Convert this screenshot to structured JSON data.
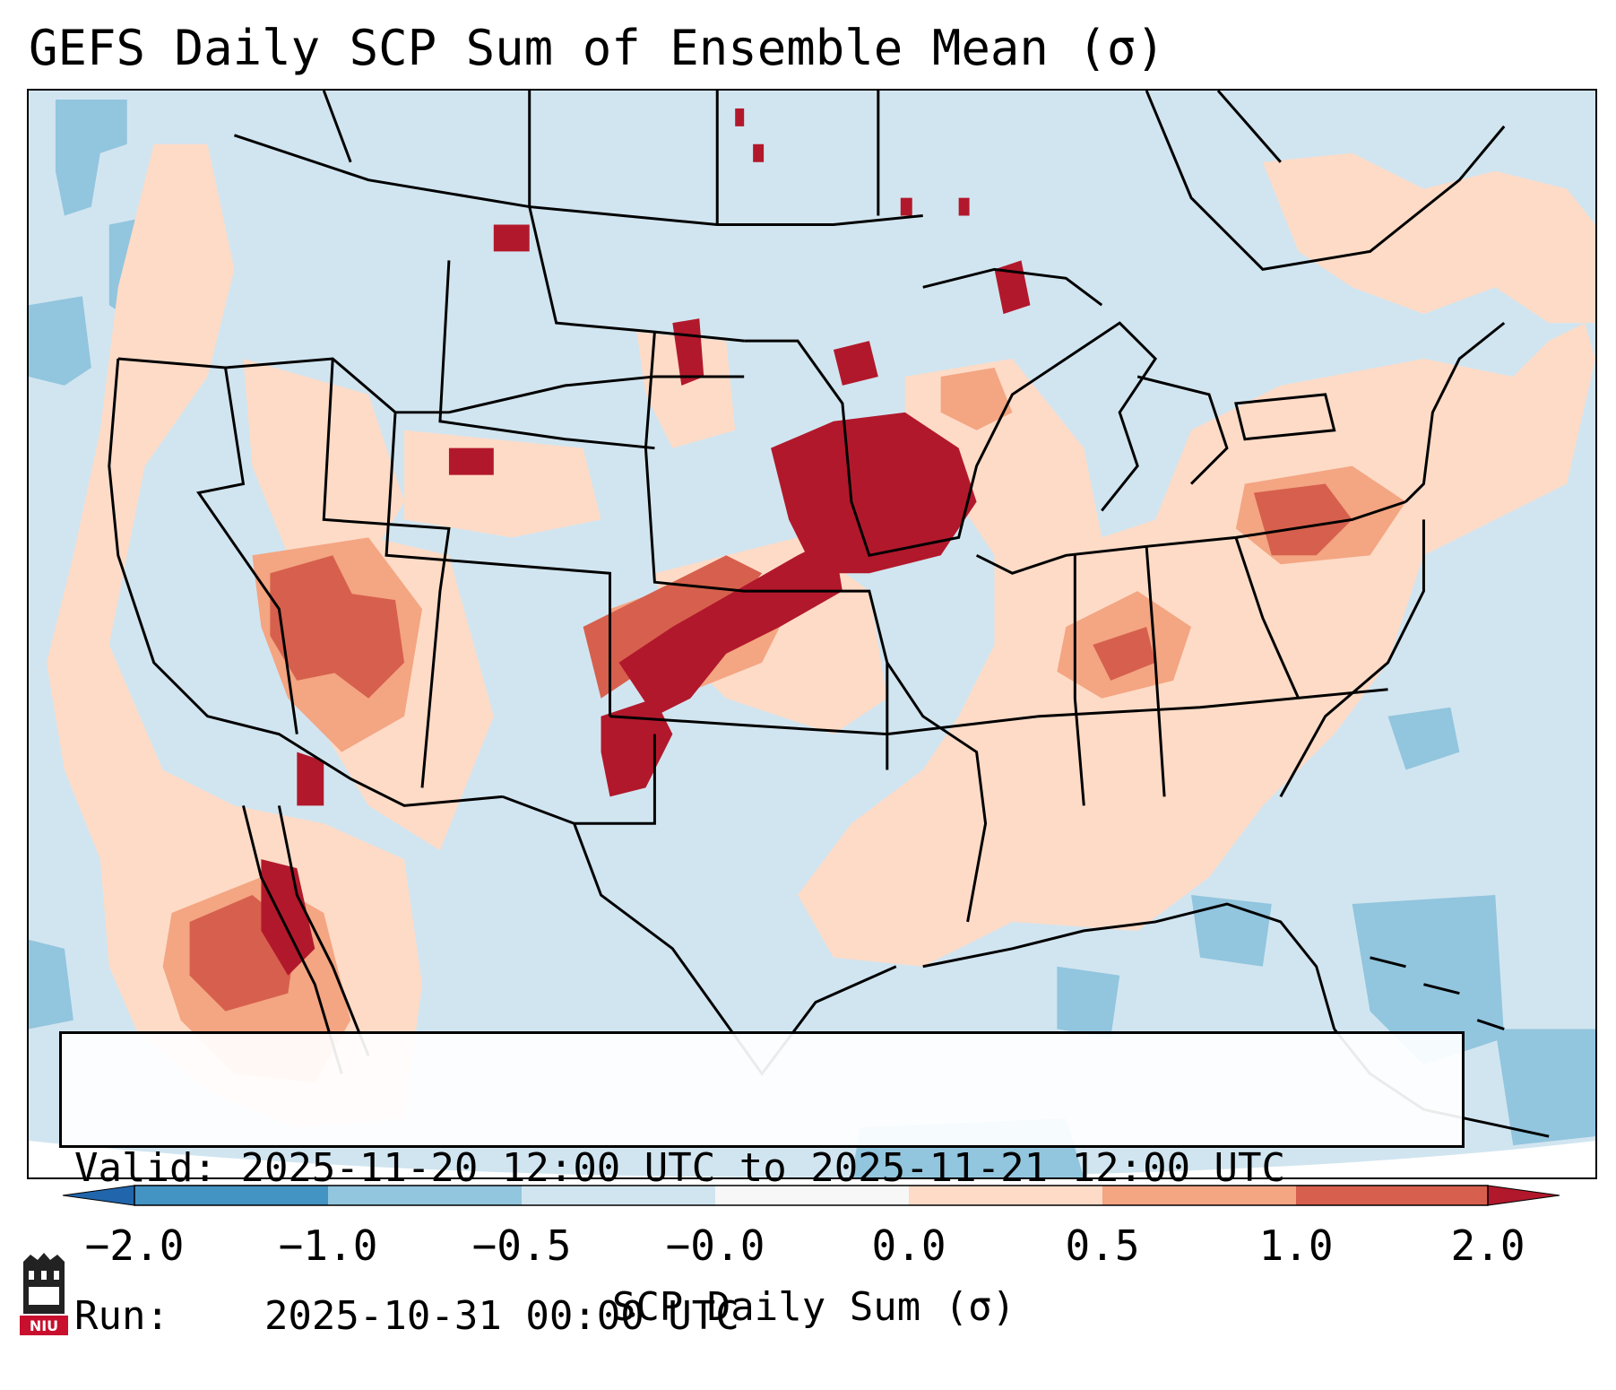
{
  "title": "GEFS Daily SCP Sum of Ensemble Mean (σ)",
  "info_box": {
    "valid_label": "Valid:",
    "valid_value": "2025-11-20 12:00 UTC to 2025-11-21 12:00 UTC",
    "run_label": "Run:",
    "run_value": "2025-10-31 00:00 UTC"
  },
  "colorbar": {
    "label": "SCP Daily Sum (σ)",
    "tick_labels": [
      "−2.0",
      "−1.0",
      "−0.5",
      "−0.0",
      "0.0",
      "0.5",
      "1.0",
      "2.0"
    ],
    "bin_colors": [
      "#4393c3",
      "#92c5de",
      "#d1e5f0",
      "#f7f7f7",
      "#fddbc7",
      "#f4a582",
      "#d6604d"
    ],
    "under_color": "#2166ac",
    "over_color": "#b2182b"
  },
  "map": {
    "background_color": "#d1e5f0",
    "regions": [
      {
        "name": "central-plains-axis",
        "level": "2.0+",
        "color": "#b2182b"
      },
      {
        "name": "upper-midwest-iowa",
        "level": "2.0+",
        "color": "#b2182b"
      },
      {
        "name": "great-basin-nevada",
        "level": "1.0-2.0",
        "color": "#d6604d"
      },
      {
        "name": "pennsylvania",
        "level": "1.0-2.0",
        "color": "#d6604d"
      },
      {
        "name": "gulf-of-california-mexico",
        "level": "1.0-2.0",
        "color": "#d6604d"
      },
      {
        "name": "eastern-us",
        "level": "0.0-0.5",
        "color": "#fddbc7"
      },
      {
        "name": "west-coast",
        "level": "0.0-0.5",
        "color": "#fddbc7"
      },
      {
        "name": "gulf-coast",
        "level": "0.0-0.5",
        "color": "#fddbc7"
      },
      {
        "name": "atlantic-offshore",
        "level": "-1.0 to -0.5",
        "color": "#92c5de"
      },
      {
        "name": "caribbean-cuba",
        "level": "-1.0 to -0.5",
        "color": "#92c5de"
      }
    ]
  },
  "logo": {
    "text": "NIU"
  }
}
